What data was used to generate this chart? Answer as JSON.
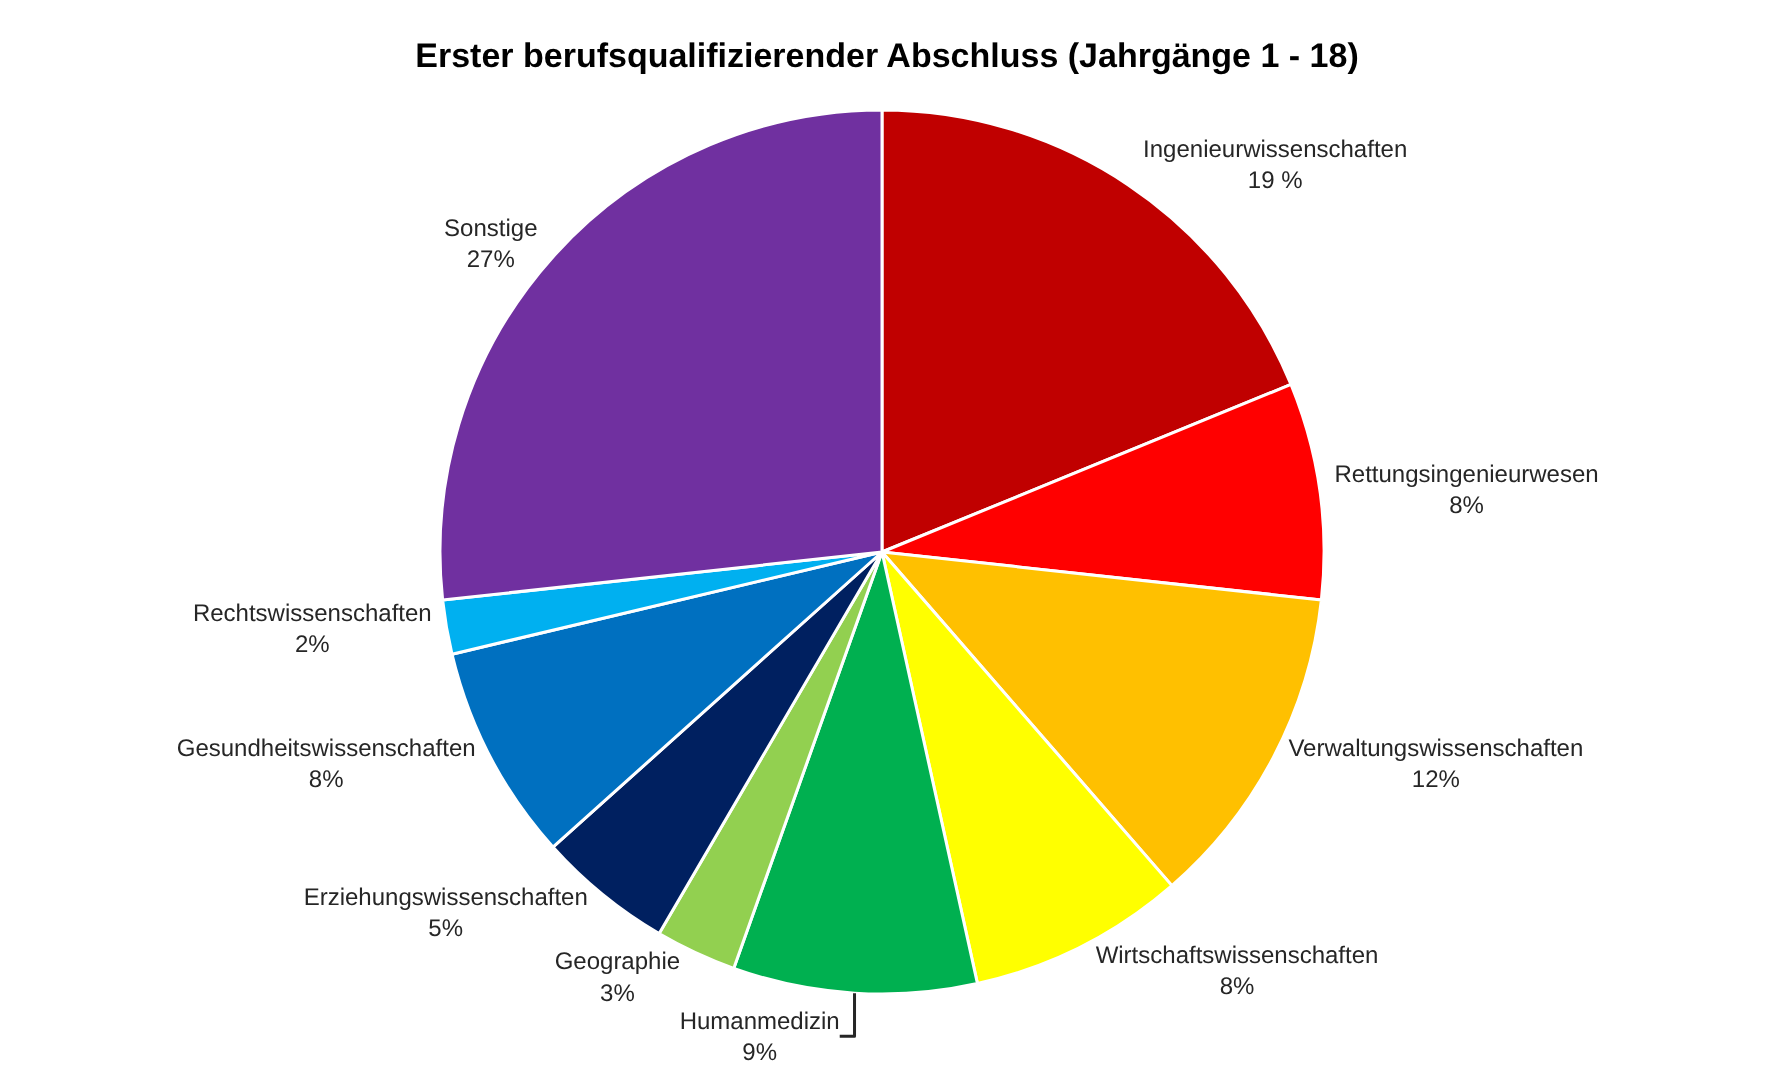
{
  "chart_data": {
    "type": "pie",
    "title": "Erster berufsqualifizierender Abschluss (Jahrgänge 1 - 18)",
    "categories": [
      "Ingenieurwissenschaften",
      "Rettungsingenieurwesen",
      "Verwaltungswissenschaften",
      "Wirtschaftswissenschaften",
      "Humanmedizin",
      "Geographie",
      "Erziehungswissenschaften",
      "Gesundheitswissenschaften",
      "Rechtswissenschaften",
      "Sonstige"
    ],
    "values": [
      19,
      8,
      12,
      8,
      9,
      3,
      5,
      8,
      2,
      27
    ],
    "value_labels": [
      "19 %",
      "8%",
      "12%",
      "8%",
      "9%",
      "3%",
      "5%",
      "8%",
      "2%",
      "27%"
    ],
    "colors": [
      "#c00000",
      "#ff0000",
      "#ffc000",
      "#ffff00",
      "#00b050",
      "#92d050",
      "#002060",
      "#0070c0",
      "#00b0f0",
      "#7030a0"
    ],
    "legend": false
  }
}
